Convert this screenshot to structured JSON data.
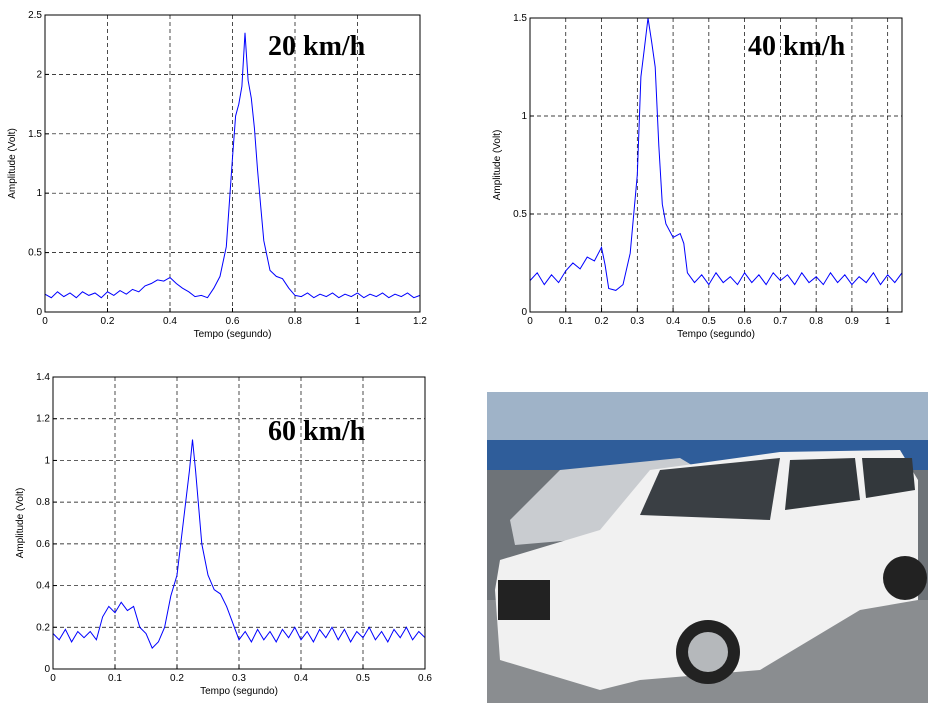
{
  "chart_data": [
    {
      "type": "line",
      "annotation": "20 km/h",
      "x_label": "Tempo (segundo)",
      "y_label": "Amplitude (Volt)",
      "grid": true,
      "color": "#0000ff",
      "xlim": [
        0,
        1.2
      ],
      "xticks": [
        0,
        0.2,
        0.4,
        0.6,
        0.8,
        1,
        1.2
      ],
      "ylim": [
        0,
        2.5
      ],
      "yticks": [
        0,
        0.5,
        1,
        1.5,
        2,
        2.5
      ],
      "x": [
        0,
        0.02,
        0.04,
        0.06,
        0.08,
        0.1,
        0.12,
        0.14,
        0.16,
        0.18,
        0.2,
        0.22,
        0.24,
        0.26,
        0.28,
        0.3,
        0.32,
        0.34,
        0.36,
        0.38,
        0.4,
        0.42,
        0.44,
        0.46,
        0.48,
        0.5,
        0.52,
        0.54,
        0.56,
        0.58,
        0.6,
        0.61,
        0.62,
        0.63,
        0.64,
        0.65,
        0.66,
        0.67,
        0.68,
        0.69,
        0.7,
        0.72,
        0.74,
        0.76,
        0.78,
        0.8,
        0.82,
        0.84,
        0.86,
        0.88,
        0.9,
        0.92,
        0.94,
        0.96,
        0.98,
        1,
        1.02,
        1.04,
        1.06,
        1.08,
        1.1,
        1.12,
        1.14,
        1.16,
        1.18,
        1.2
      ],
      "values": [
        0.15,
        0.12,
        0.17,
        0.13,
        0.16,
        0.12,
        0.17,
        0.14,
        0.16,
        0.12,
        0.17,
        0.14,
        0.18,
        0.15,
        0.19,
        0.17,
        0.22,
        0.24,
        0.27,
        0.26,
        0.29,
        0.24,
        0.2,
        0.17,
        0.13,
        0.14,
        0.12,
        0.2,
        0.3,
        0.55,
        1.3,
        1.65,
        1.75,
        1.9,
        2.35,
        1.95,
        1.8,
        1.55,
        1.2,
        0.9,
        0.6,
        0.35,
        0.3,
        0.28,
        0.2,
        0.14,
        0.13,
        0.16,
        0.12,
        0.15,
        0.13,
        0.16,
        0.12,
        0.15,
        0.13,
        0.16,
        0.12,
        0.15,
        0.13,
        0.16,
        0.12,
        0.15,
        0.13,
        0.16,
        0.12,
        0.14
      ]
    },
    {
      "type": "line",
      "annotation": "40 km/h",
      "x_label": "Tempo (segundo)",
      "y_label": "Amplitude (Volt)",
      "grid": true,
      "color": "#0000ff",
      "xlim": [
        0,
        1.04
      ],
      "xticks": [
        0,
        0.1,
        0.2,
        0.3,
        0.4,
        0.5,
        0.6,
        0.7,
        0.8,
        0.9,
        1
      ],
      "ylim": [
        0,
        1.5
      ],
      "yticks": [
        0,
        0.5,
        1,
        1.5
      ],
      "x": [
        0,
        0.02,
        0.04,
        0.06,
        0.08,
        0.1,
        0.12,
        0.14,
        0.16,
        0.18,
        0.2,
        0.21,
        0.22,
        0.24,
        0.26,
        0.28,
        0.3,
        0.31,
        0.32,
        0.33,
        0.34,
        0.35,
        0.36,
        0.37,
        0.38,
        0.4,
        0.42,
        0.43,
        0.44,
        0.46,
        0.48,
        0.5,
        0.52,
        0.54,
        0.56,
        0.58,
        0.6,
        0.62,
        0.64,
        0.66,
        0.68,
        0.7,
        0.72,
        0.74,
        0.76,
        0.78,
        0.8,
        0.82,
        0.84,
        0.86,
        0.88,
        0.9,
        0.92,
        0.94,
        0.96,
        0.98,
        1,
        1.02,
        1.04
      ],
      "values": [
        0.16,
        0.2,
        0.14,
        0.19,
        0.15,
        0.21,
        0.25,
        0.22,
        0.28,
        0.26,
        0.33,
        0.24,
        0.12,
        0.11,
        0.14,
        0.3,
        0.7,
        1.2,
        1.35,
        1.5,
        1.38,
        1.25,
        0.85,
        0.55,
        0.45,
        0.38,
        0.4,
        0.35,
        0.2,
        0.15,
        0.19,
        0.14,
        0.2,
        0.15,
        0.18,
        0.14,
        0.2,
        0.15,
        0.19,
        0.14,
        0.2,
        0.16,
        0.19,
        0.14,
        0.2,
        0.15,
        0.18,
        0.14,
        0.2,
        0.15,
        0.19,
        0.14,
        0.18,
        0.15,
        0.2,
        0.14,
        0.19,
        0.15,
        0.2
      ]
    },
    {
      "type": "line",
      "annotation": "60 km/h",
      "x_label": "Tempo (segundo)",
      "y_label": "Amplitude (Volt)",
      "grid": true,
      "color": "#0000ff",
      "xlim": [
        0,
        0.6
      ],
      "xticks": [
        0,
        0.1,
        0.2,
        0.3,
        0.4,
        0.5,
        0.6
      ],
      "ylim": [
        0,
        1.4
      ],
      "yticks": [
        0,
        0.2,
        0.4,
        0.6,
        0.8,
        1,
        1.2,
        1.4
      ],
      "x": [
        0,
        0.01,
        0.02,
        0.03,
        0.04,
        0.05,
        0.06,
        0.07,
        0.08,
        0.09,
        0.1,
        0.11,
        0.12,
        0.13,
        0.14,
        0.15,
        0.16,
        0.17,
        0.18,
        0.19,
        0.2,
        0.21,
        0.22,
        0.225,
        0.23,
        0.24,
        0.25,
        0.26,
        0.27,
        0.28,
        0.29,
        0.3,
        0.31,
        0.32,
        0.33,
        0.34,
        0.35,
        0.36,
        0.37,
        0.38,
        0.39,
        0.4,
        0.41,
        0.42,
        0.43,
        0.44,
        0.45,
        0.46,
        0.47,
        0.48,
        0.49,
        0.5,
        0.51,
        0.52,
        0.53,
        0.54,
        0.55,
        0.56,
        0.57,
        0.58,
        0.59,
        0.6
      ],
      "values": [
        0.17,
        0.14,
        0.19,
        0.13,
        0.18,
        0.15,
        0.18,
        0.14,
        0.25,
        0.3,
        0.27,
        0.32,
        0.28,
        0.3,
        0.2,
        0.17,
        0.1,
        0.13,
        0.2,
        0.35,
        0.45,
        0.7,
        0.95,
        1.1,
        0.95,
        0.6,
        0.45,
        0.38,
        0.36,
        0.3,
        0.22,
        0.14,
        0.18,
        0.13,
        0.19,
        0.14,
        0.18,
        0.13,
        0.19,
        0.15,
        0.2,
        0.14,
        0.18,
        0.13,
        0.19,
        0.15,
        0.2,
        0.14,
        0.19,
        0.13,
        0.18,
        0.15,
        0.2,
        0.14,
        0.18,
        0.13,
        0.19,
        0.15,
        0.2,
        0.14,
        0.18,
        0.15
      ]
    }
  ]
}
